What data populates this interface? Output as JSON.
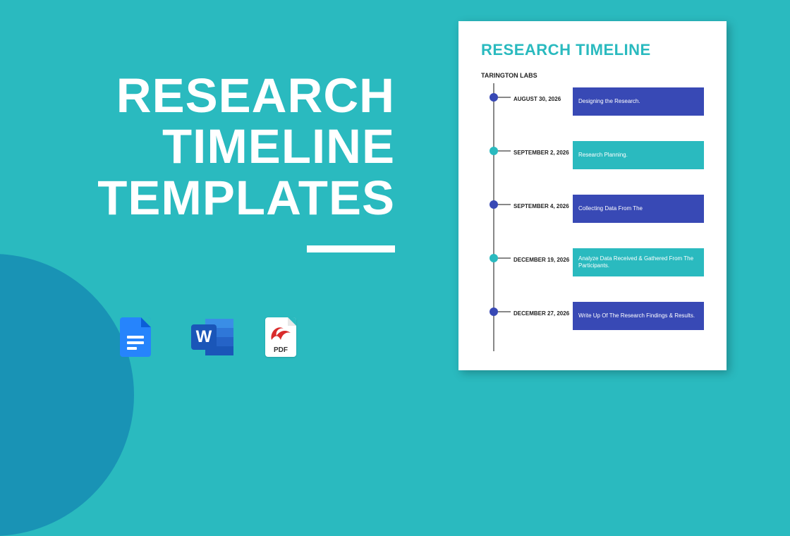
{
  "colors": {
    "background": "#2ababf",
    "corner": "#1993b5",
    "title_text": "#ffffff",
    "doc_title": "#2ababf",
    "axis": "#888888",
    "blue": "#3849b5",
    "teal": "#2ababf"
  },
  "title": {
    "line1": "RESEARCH",
    "line2": "TIMELINE",
    "line3": "TEMPLATES"
  },
  "icons": {
    "pdf_label": "PDF",
    "word_letter": "W",
    "word_bands": [
      "#3a8ee6",
      "#2f77d8",
      "#2563c7",
      "#1a56b8"
    ]
  },
  "document": {
    "title": "RESEARCH TIMELINE",
    "org": "TARINGTON LABS",
    "items": [
      {
        "date": "AUGUST 30, 2026",
        "text": "Designing the Research.",
        "dot": "#3849b5",
        "box": "#3849b5"
      },
      {
        "date": "SEPTEMBER 2, 2026",
        "text": "Research Planning.",
        "dot": "#2ababf",
        "box": "#2ababf"
      },
      {
        "date": "SEPTEMBER 4, 2026",
        "text": "Collecting Data From The",
        "dot": "#3849b5",
        "box": "#3849b5"
      },
      {
        "date": "DECEMBER 19, 2026",
        "text": "Analyze Data Received & Gathered From The Participants.",
        "dot": "#2ababf",
        "box": "#2ababf"
      },
      {
        "date": "DECEMBER 27, 2026",
        "text": "Write Up Of The Research Findings & Results.",
        "dot": "#3849b5",
        "box": "#3849b5"
      }
    ]
  }
}
